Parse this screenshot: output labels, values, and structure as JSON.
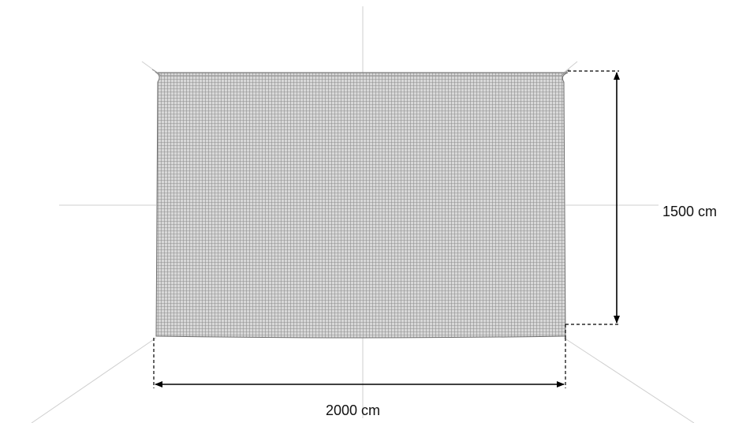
{
  "dimensions": {
    "width_label": "2000 cm",
    "height_label": "1500 cm"
  },
  "colors": {
    "mesh_fill": "#d8d8d8",
    "mesh_line": "#8f8f8f",
    "guide_line": "#cfcfcf",
    "dimension_line": "#000000"
  }
}
